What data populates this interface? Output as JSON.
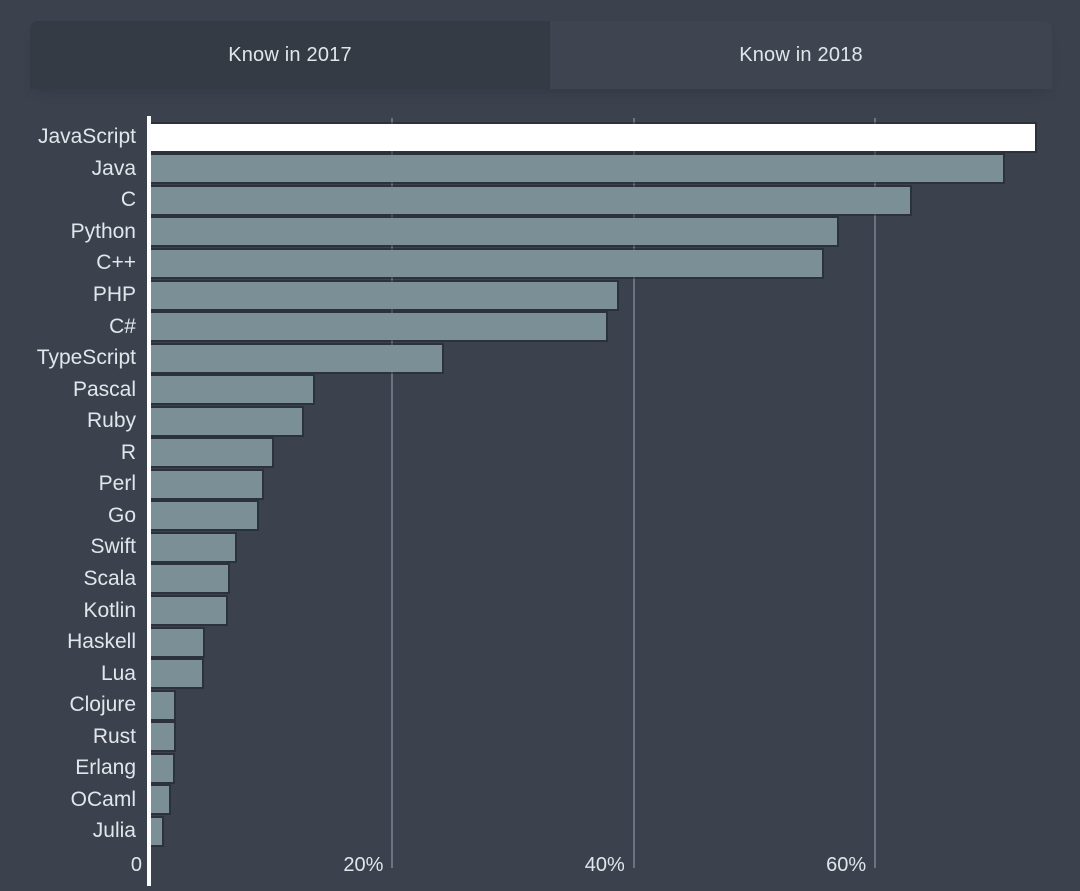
{
  "header": {
    "tabs": [
      {
        "label": "Know in 2017",
        "active": false
      },
      {
        "label": "Know in 2018",
        "active": true
      }
    ]
  },
  "chart_data": {
    "type": "bar",
    "orientation": "horizontal",
    "title": "",
    "categories": [
      "JavaScript",
      "Java",
      "C",
      "Python",
      "C++",
      "PHP",
      "C#",
      "TypeScript",
      "Pascal",
      "Ruby",
      "R",
      "Perl",
      "Go",
      "Swift",
      "Scala",
      "Kotlin",
      "Haskell",
      "Lua",
      "Clojure",
      "Rust",
      "Erlang",
      "OCaml",
      "Julia"
    ],
    "values": [
      73.2,
      70.6,
      62.9,
      56.8,
      55.6,
      38.6,
      37.7,
      24.1,
      13.4,
      12.5,
      10.0,
      9.2,
      8.8,
      7.0,
      6.4,
      6.2,
      4.3,
      4.2,
      1.9,
      1.9,
      1.8,
      1.5,
      0.9
    ],
    "unit": "%",
    "highlight_category": "JavaScript",
    "x_ticks": [
      {
        "label": "0",
        "value": 0
      },
      {
        "label": "20%",
        "value": 20
      },
      {
        "label": "40%",
        "value": 40
      },
      {
        "label": "60%",
        "value": 60
      }
    ],
    "xlim": [
      0,
      77
    ],
    "grid": "vertical-gridlines-only",
    "legend_position": "none"
  },
  "colors": {
    "background": "#3b424e",
    "tab_inactive_bg": "#343b45",
    "tab_active_bg": "#3e4551",
    "bar": "#7b8f97",
    "bar_highlight": "#ffffff",
    "axis_line": "#fcfdfe",
    "gridline": "#6b7280",
    "text": "#e2e6eb"
  }
}
